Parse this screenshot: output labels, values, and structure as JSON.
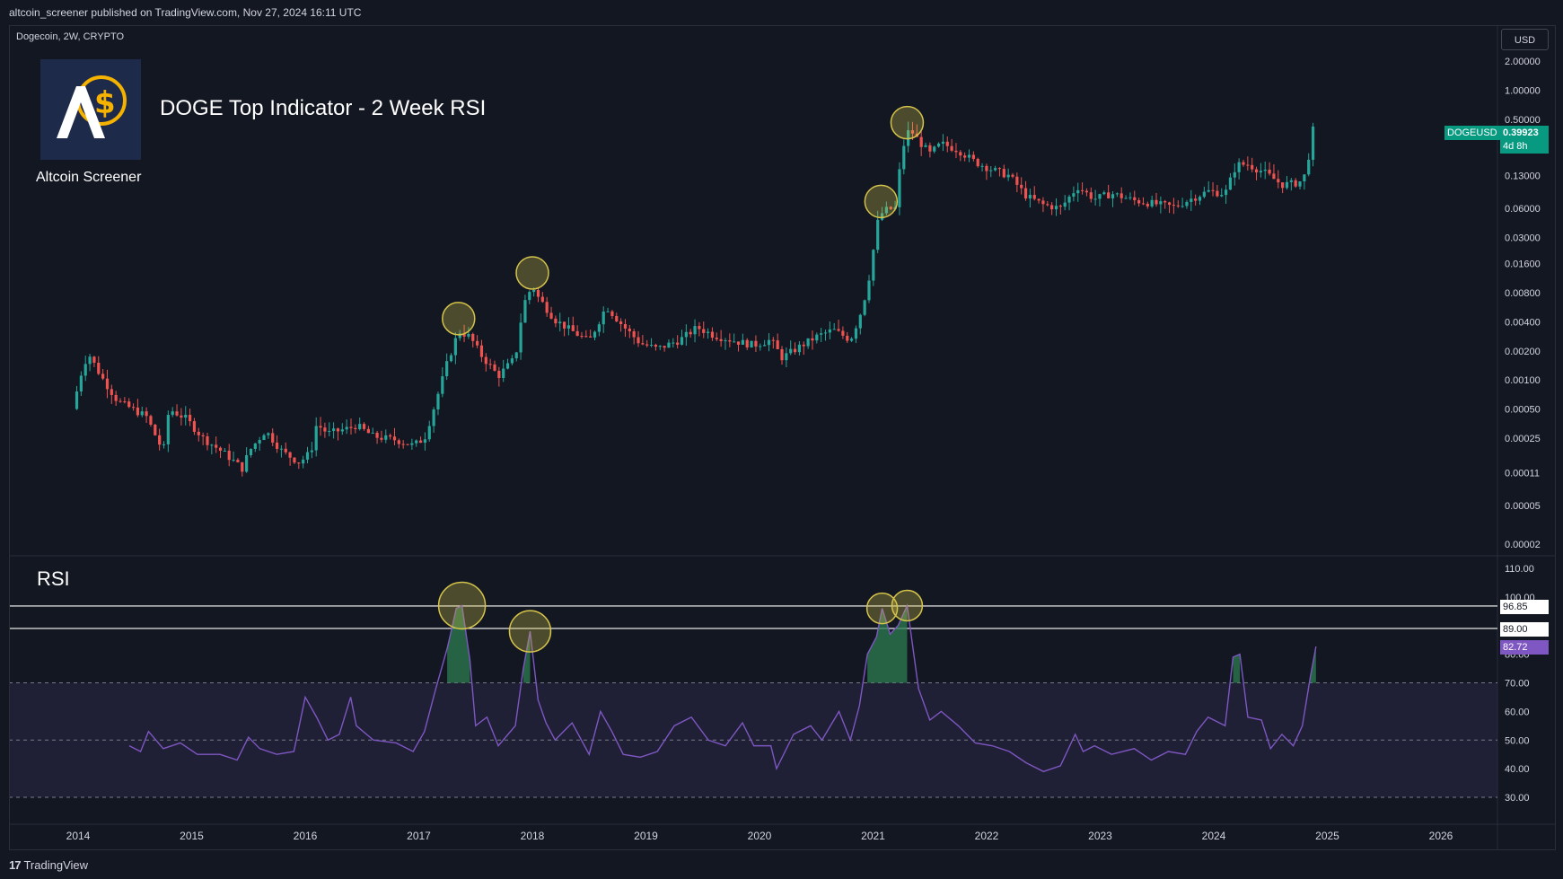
{
  "header": {
    "publisher_line": "altcoin_screener published on TradingView.com, Nov 27, 2024 16:11 UTC"
  },
  "symbol": {
    "info": "Dogecoin, 2W, CRYPTO",
    "ticker": "DOGEUSD",
    "last_price": "0.39923",
    "countdown": "4d 8h",
    "currency": "USD"
  },
  "branding": {
    "name": "Altcoin Screener",
    "headline": "DOGE Top Indicator - 2 Week RSI",
    "footer": "TradingView",
    "footer_mark": "17"
  },
  "rsi_pane": {
    "title": "RSI",
    "level_labels": [
      "96.85",
      "89.00"
    ],
    "current_value": "82.72"
  },
  "colors": {
    "background": "#131722",
    "up": "#26a69a",
    "down": "#ef5350",
    "rsi_line": "#7e57c2",
    "rsi_band": "#2a2745",
    "highlight": "#d4c34a",
    "grid": "#2a2e39"
  },
  "chart_data": [
    {
      "type": "candlestick",
      "title": "",
      "y_scale": "log",
      "y_ticks": [
        "2.00000",
        "1.00000",
        "0.50000",
        "0.25000",
        "0.13000",
        "0.06000",
        "0.03000",
        "0.01600",
        "0.00800",
        "0.00400",
        "0.00200",
        "0.00100",
        "0.00050",
        "0.00025",
        "0.00011",
        "0.00005",
        "0.00002"
      ],
      "x_ticks": [
        "2014",
        "2015",
        "2016",
        "2017",
        "2018",
        "2019",
        "2020",
        "2021",
        "2022",
        "2023",
        "2024",
        "2025",
        "2026"
      ],
      "price_path": [
        [
          2013.95,
          0.0005
        ],
        [
          2014.05,
          0.0015
        ],
        [
          2014.1,
          0.0018
        ],
        [
          2014.2,
          0.0011
        ],
        [
          2014.35,
          0.0006
        ],
        [
          2014.6,
          0.00042
        ],
        [
          2014.75,
          0.00018
        ],
        [
          2014.8,
          0.0005
        ],
        [
          2014.95,
          0.0004
        ],
        [
          2015.1,
          0.00025
        ],
        [
          2015.3,
          0.00017
        ],
        [
          2015.45,
          0.00012
        ],
        [
          2015.5,
          0.00018
        ],
        [
          2015.65,
          0.0003
        ],
        [
          2015.8,
          0.00018
        ],
        [
          2015.95,
          0.00014
        ],
        [
          2016.05,
          0.00018
        ],
        [
          2016.1,
          0.00035
        ],
        [
          2016.2,
          0.00028
        ],
        [
          2016.4,
          0.00032
        ],
        [
          2016.45,
          0.00034
        ],
        [
          2016.6,
          0.00026
        ],
        [
          2016.8,
          0.00024
        ],
        [
          2016.95,
          0.00021
        ],
        [
          2017.05,
          0.00025
        ],
        [
          2017.15,
          0.0006
        ],
        [
          2017.25,
          0.0015
        ],
        [
          2017.35,
          0.0032
        ],
        [
          2017.45,
          0.0028
        ],
        [
          2017.55,
          0.0018
        ],
        [
          2017.7,
          0.0011
        ],
        [
          2017.85,
          0.0017
        ],
        [
          2017.92,
          0.006
        ],
        [
          2018.0,
          0.0095
        ],
        [
          2018.05,
          0.0072
        ],
        [
          2018.2,
          0.0042
        ],
        [
          2018.35,
          0.0032
        ],
        [
          2018.5,
          0.0025
        ],
        [
          2018.65,
          0.0058
        ],
        [
          2018.8,
          0.0036
        ],
        [
          2018.95,
          0.0024
        ],
        [
          2019.1,
          0.0021
        ],
        [
          2019.3,
          0.0026
        ],
        [
          2019.45,
          0.0035
        ],
        [
          2019.6,
          0.0029
        ],
        [
          2019.8,
          0.0025
        ],
        [
          2019.95,
          0.0023
        ],
        [
          2020.1,
          0.0026
        ],
        [
          2020.2,
          0.0017
        ],
        [
          2020.35,
          0.0022
        ],
        [
          2020.5,
          0.0028
        ],
        [
          2020.65,
          0.0033
        ],
        [
          2020.8,
          0.0026
        ],
        [
          2020.88,
          0.0045
        ],
        [
          2020.95,
          0.009
        ],
        [
          2021.05,
          0.05
        ],
        [
          2021.12,
          0.058
        ],
        [
          2021.2,
          0.06
        ],
        [
          2021.25,
          0.23
        ],
        [
          2021.32,
          0.4
        ],
        [
          2021.4,
          0.3
        ],
        [
          2021.5,
          0.22
        ],
        [
          2021.6,
          0.28
        ],
        [
          2021.75,
          0.24
        ],
        [
          2021.9,
          0.18
        ],
        [
          2022.05,
          0.15
        ],
        [
          2022.2,
          0.13
        ],
        [
          2022.35,
          0.08
        ],
        [
          2022.5,
          0.065
        ],
        [
          2022.65,
          0.06
        ],
        [
          2022.8,
          0.1
        ],
        [
          2022.95,
          0.075
        ],
        [
          2023.1,
          0.085
        ],
        [
          2023.3,
          0.072
        ],
        [
          2023.5,
          0.066
        ],
        [
          2023.65,
          0.062
        ],
        [
          2023.8,
          0.075
        ],
        [
          2023.95,
          0.09
        ],
        [
          2024.1,
          0.085
        ],
        [
          2024.2,
          0.17
        ],
        [
          2024.3,
          0.17
        ],
        [
          2024.45,
          0.14
        ],
        [
          2024.6,
          0.105
        ],
        [
          2024.75,
          0.11
        ],
        [
          2024.82,
          0.14
        ],
        [
          2024.86,
          0.38
        ],
        [
          2024.9,
          0.39923
        ]
      ],
      "highlighted_tops": [
        2017.35,
        2018.0,
        2021.07,
        2021.3
      ]
    },
    {
      "type": "line",
      "title": "",
      "ylim": [
        25,
        110
      ],
      "y_ticks": [
        "110.00",
        "100.00",
        "90.00",
        "80.00",
        "70.00",
        "60.00",
        "50.00",
        "40.00",
        "30.00"
      ],
      "levels": [
        96.85,
        89.0
      ],
      "band": [
        30,
        70
      ],
      "midline": 50,
      "series": [
        {
          "name": "RSI",
          "points": [
            [
              2014.45,
              48
            ],
            [
              2014.55,
              46
            ],
            [
              2014.62,
              53
            ],
            [
              2014.75,
              47
            ],
            [
              2014.9,
              49
            ],
            [
              2015.05,
              45
            ],
            [
              2015.25,
              45
            ],
            [
              2015.4,
              43
            ],
            [
              2015.5,
              51
            ],
            [
              2015.6,
              47
            ],
            [
              2015.75,
              45
            ],
            [
              2015.9,
              46
            ],
            [
              2016.0,
              65
            ],
            [
              2016.1,
              58
            ],
            [
              2016.2,
              50
            ],
            [
              2016.3,
              52
            ],
            [
              2016.4,
              65
            ],
            [
              2016.45,
              55
            ],
            [
              2016.6,
              50
            ],
            [
              2016.8,
              49
            ],
            [
              2016.95,
              46
            ],
            [
              2017.05,
              53
            ],
            [
              2017.15,
              68
            ],
            [
              2017.25,
              82
            ],
            [
              2017.33,
              96
            ],
            [
              2017.38,
              97
            ],
            [
              2017.45,
              78
            ],
            [
              2017.5,
              55
            ],
            [
              2017.6,
              58
            ],
            [
              2017.7,
              48
            ],
            [
              2017.85,
              55
            ],
            [
              2017.92,
              75
            ],
            [
              2017.98,
              88
            ],
            [
              2018.05,
              64
            ],
            [
              2018.12,
              56
            ],
            [
              2018.2,
              50
            ],
            [
              2018.35,
              56
            ],
            [
              2018.5,
              45
            ],
            [
              2018.6,
              60
            ],
            [
              2018.7,
              53
            ],
            [
              2018.8,
              45
            ],
            [
              2018.95,
              44
            ],
            [
              2019.1,
              46
            ],
            [
              2019.25,
              55
            ],
            [
              2019.4,
              58
            ],
            [
              2019.55,
              50
            ],
            [
              2019.7,
              48
            ],
            [
              2019.85,
              56
            ],
            [
              2019.95,
              48
            ],
            [
              2020.1,
              48
            ],
            [
              2020.15,
              40
            ],
            [
              2020.3,
              52
            ],
            [
              2020.45,
              55
            ],
            [
              2020.55,
              50
            ],
            [
              2020.7,
              60
            ],
            [
              2020.8,
              50
            ],
            [
              2020.88,
              62
            ],
            [
              2020.95,
              80
            ],
            [
              2021.03,
              86
            ],
            [
              2021.08,
              96
            ],
            [
              2021.15,
              87
            ],
            [
              2021.22,
              90
            ],
            [
              2021.3,
              97
            ],
            [
              2021.4,
              68
            ],
            [
              2021.5,
              57
            ],
            [
              2021.6,
              60
            ],
            [
              2021.75,
              55
            ],
            [
              2021.9,
              49
            ],
            [
              2022.05,
              48
            ],
            [
              2022.2,
              46
            ],
            [
              2022.35,
              42
            ],
            [
              2022.5,
              39
            ],
            [
              2022.65,
              41
            ],
            [
              2022.78,
              52
            ],
            [
              2022.85,
              46
            ],
            [
              2022.95,
              48
            ],
            [
              2023.1,
              45
            ],
            [
              2023.3,
              47
            ],
            [
              2023.45,
              43
            ],
            [
              2023.6,
              46
            ],
            [
              2023.75,
              45
            ],
            [
              2023.85,
              53
            ],
            [
              2023.95,
              58
            ],
            [
              2024.1,
              55
            ],
            [
              2024.17,
              79
            ],
            [
              2024.23,
              80
            ],
            [
              2024.3,
              58
            ],
            [
              2024.42,
              57
            ],
            [
              2024.5,
              47
            ],
            [
              2024.6,
              52
            ],
            [
              2024.7,
              48
            ],
            [
              2024.78,
              55
            ],
            [
              2024.85,
              72
            ],
            [
              2024.9,
              82.72
            ]
          ]
        }
      ],
      "highlighted_tops": [
        2017.38,
        2017.98,
        2021.08,
        2021.3
      ]
    }
  ]
}
